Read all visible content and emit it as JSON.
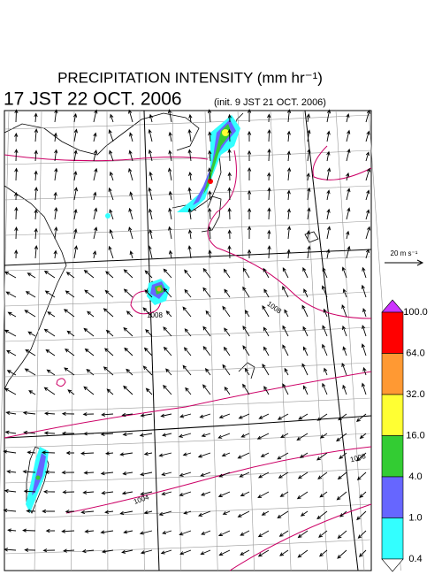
{
  "header": {
    "title": "PRECIPITATION INTENSITY (mm hr⁻¹)",
    "valid_time": "17 JST 22 OCT. 2006",
    "init_time": "(init. 9 JST 21 OCT. 2006)"
  },
  "reference_vector": "20 m s⁻¹",
  "colorbar": {
    "levels": [
      {
        "value": 100,
        "label": "100.0"
      },
      {
        "value": 64,
        "label": "64.0"
      },
      {
        "value": 32,
        "label": "32.0"
      },
      {
        "value": 16,
        "label": "16.0"
      },
      {
        "value": 4,
        "label": "4.0"
      },
      {
        "value": 1,
        "label": "1.0"
      },
      {
        "value": 0.4,
        "label": "0.4"
      }
    ],
    "colors": [
      "#cc33ff",
      "#ff0000",
      "#ff9933",
      "#ffff33",
      "#33cc33",
      "#6666ff",
      "#33ffff",
      "#ffffff"
    ]
  },
  "isobar_labels": [
    "1008",
    "1008",
    "1004",
    "1008"
  ]
}
